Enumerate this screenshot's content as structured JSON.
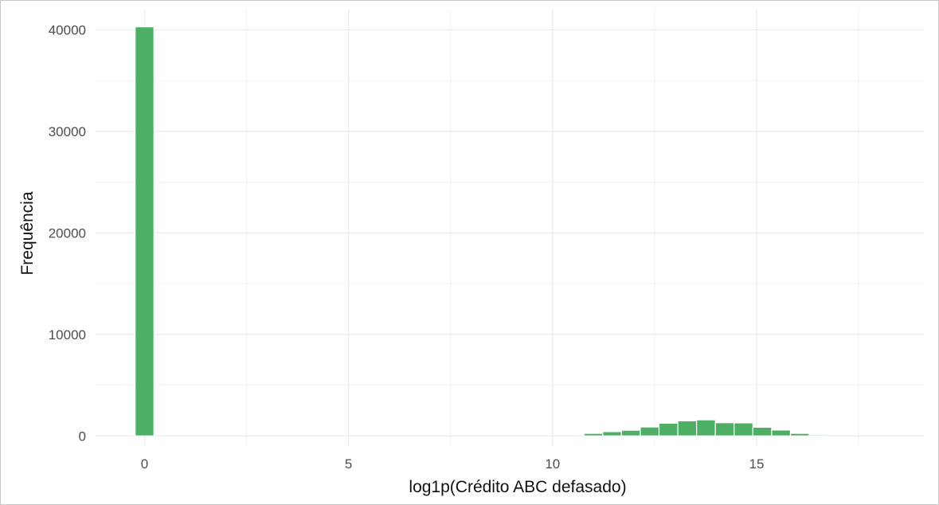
{
  "chart_data": {
    "type": "bar",
    "subtype": "histogram",
    "title": "",
    "xlabel": "log1p(Crédito ABC defasado)",
    "ylabel": "Frequência",
    "xlim": [
      -1.2,
      19.1
    ],
    "ylim": [
      -1000,
      42000
    ],
    "x_ticks": [
      0,
      5,
      10,
      15
    ],
    "y_ticks": [
      0,
      10000,
      20000,
      30000,
      40000
    ],
    "grid": true,
    "legend": "none",
    "bar_color": "#4caf64",
    "bin_width": 0.46,
    "bins": [
      {
        "x": 0.0,
        "count": 40300
      },
      {
        "x": 11.0,
        "count": 250
      },
      {
        "x": 11.46,
        "count": 420
      },
      {
        "x": 11.92,
        "count": 560
      },
      {
        "x": 12.38,
        "count": 880
      },
      {
        "x": 12.84,
        "count": 1250
      },
      {
        "x": 13.3,
        "count": 1480
      },
      {
        "x": 13.76,
        "count": 1580
      },
      {
        "x": 14.22,
        "count": 1300
      },
      {
        "x": 14.68,
        "count": 1280
      },
      {
        "x": 15.14,
        "count": 850
      },
      {
        "x": 15.6,
        "count": 580
      },
      {
        "x": 16.06,
        "count": 250
      },
      {
        "x": 16.52,
        "count": 110
      }
    ]
  }
}
